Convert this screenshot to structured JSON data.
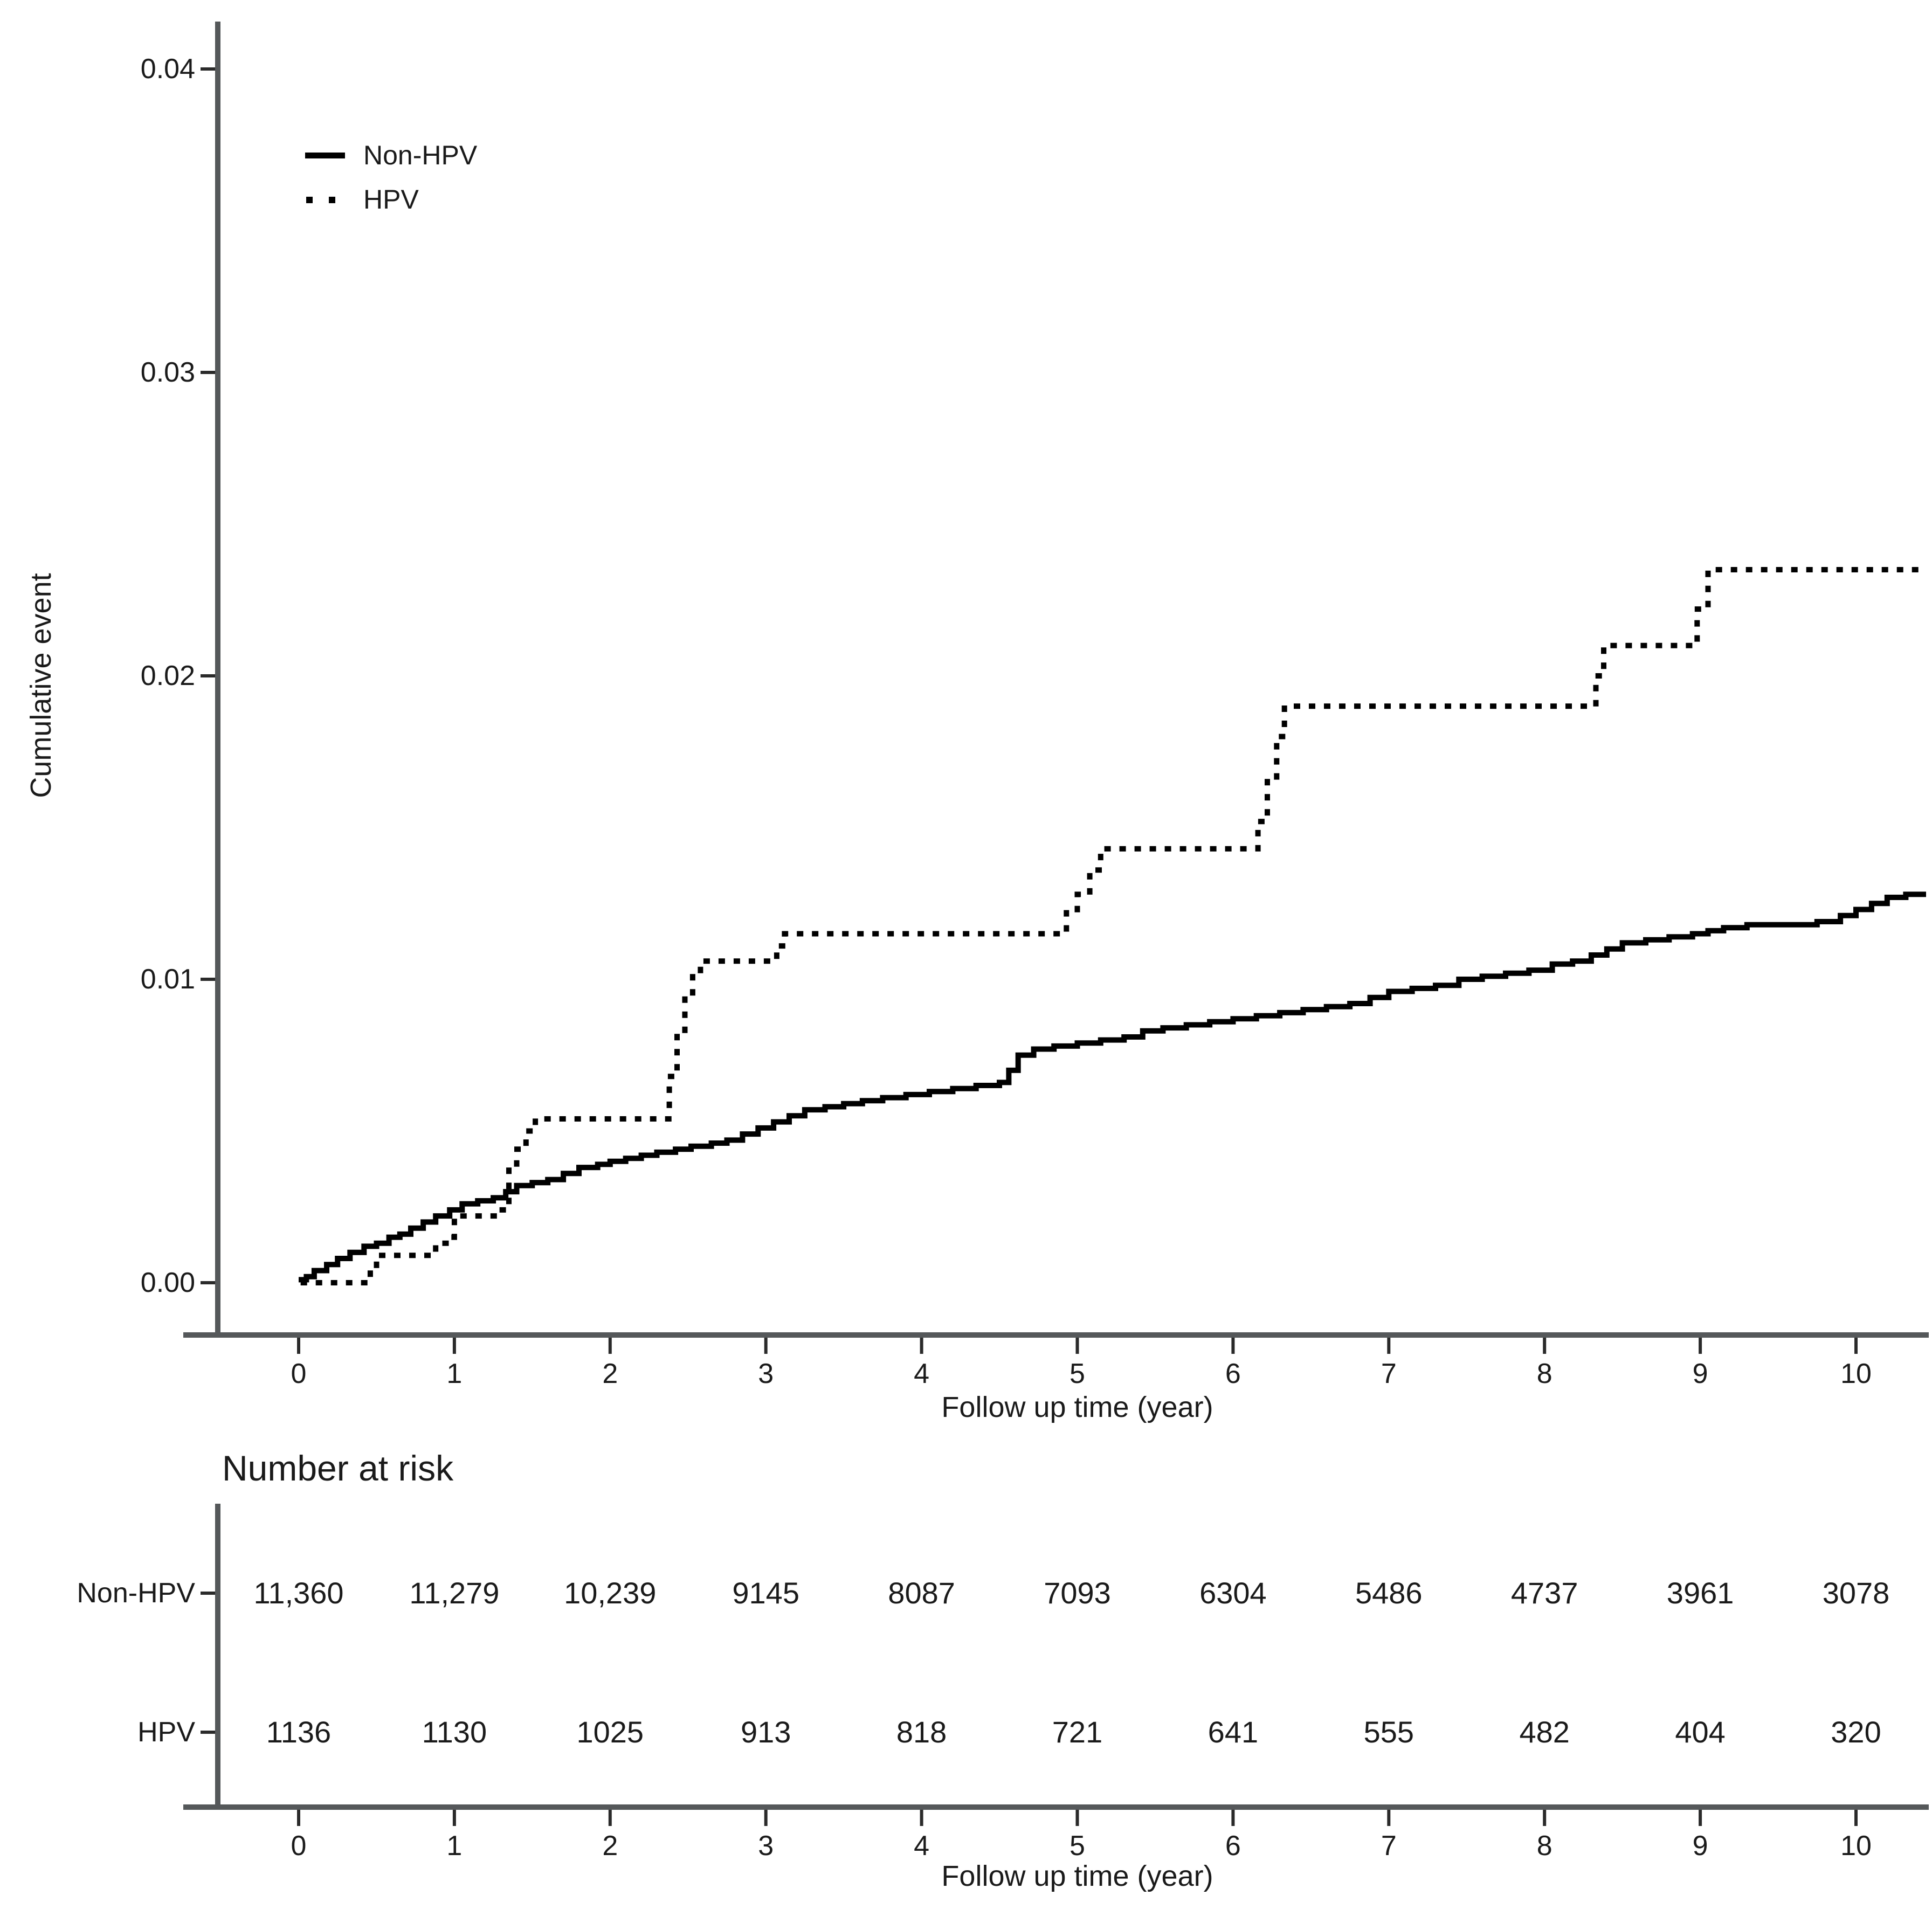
{
  "figure": {
    "background_color": "#ffffff",
    "text_color": "#1a1a1a",
    "axis_line_color": "#55585a",
    "curve_color": "#000000"
  },
  "chart_data": {
    "type": "line",
    "subtype": "kaplan-meier-cumulative-incidence-step",
    "title": "",
    "xlabel": "Follow up time (year)",
    "ylabel": "Cumulative event",
    "xlim": [
      -0.45,
      10.55
    ],
    "ylim": [
      -0.0018,
      0.0415
    ],
    "grid": false,
    "legend_position": "inside-top-left",
    "x_ticks": [
      0,
      1,
      2,
      3,
      4,
      5,
      6,
      7,
      8,
      9,
      10
    ],
    "x_tick_labels": [
      "0",
      "1",
      "2",
      "3",
      "4",
      "5",
      "6",
      "7",
      "8",
      "9",
      "10"
    ],
    "y_ticks": [
      0.0,
      0.01,
      0.02,
      0.03,
      0.04
    ],
    "y_tick_labels": [
      "0.00",
      "0.01",
      "0.02",
      "0.03",
      "0.04"
    ],
    "series": [
      {
        "name": "Non-HPV",
        "line_style": "solid",
        "color": "#000000",
        "step": true,
        "points": [
          [
            0,
            0.0001
          ],
          [
            0.05,
            0.0002
          ],
          [
            0.1,
            0.0004
          ],
          [
            0.18,
            0.0006
          ],
          [
            0.25,
            0.0008
          ],
          [
            0.33,
            0.001
          ],
          [
            0.42,
            0.0012
          ],
          [
            0.5,
            0.0013
          ],
          [
            0.58,
            0.0015
          ],
          [
            0.65,
            0.0016
          ],
          [
            0.72,
            0.0018
          ],
          [
            0.8,
            0.002
          ],
          [
            0.88,
            0.0022
          ],
          [
            0.97,
            0.0024
          ],
          [
            1.05,
            0.0026
          ],
          [
            1.15,
            0.0027
          ],
          [
            1.25,
            0.0028
          ],
          [
            1.33,
            0.003
          ],
          [
            1.4,
            0.0032
          ],
          [
            1.5,
            0.0033
          ],
          [
            1.6,
            0.0034
          ],
          [
            1.7,
            0.0036
          ],
          [
            1.8,
            0.0038
          ],
          [
            1.92,
            0.0039
          ],
          [
            2.0,
            0.004
          ],
          [
            2.1,
            0.0041
          ],
          [
            2.2,
            0.0042
          ],
          [
            2.3,
            0.0043
          ],
          [
            2.42,
            0.0044
          ],
          [
            2.52,
            0.0045
          ],
          [
            2.65,
            0.0046
          ],
          [
            2.75,
            0.0047
          ],
          [
            2.85,
            0.0049
          ],
          [
            2.95,
            0.0051
          ],
          [
            3.05,
            0.0053
          ],
          [
            3.15,
            0.0055
          ],
          [
            3.25,
            0.0057
          ],
          [
            3.38,
            0.0058
          ],
          [
            3.5,
            0.0059
          ],
          [
            3.62,
            0.006
          ],
          [
            3.75,
            0.0061
          ],
          [
            3.9,
            0.0062
          ],
          [
            4.05,
            0.0063
          ],
          [
            4.2,
            0.0064
          ],
          [
            4.35,
            0.0065
          ],
          [
            4.5,
            0.0066
          ],
          [
            4.56,
            0.007
          ],
          [
            4.62,
            0.0075
          ],
          [
            4.72,
            0.0077
          ],
          [
            4.85,
            0.0078
          ],
          [
            5.0,
            0.0079
          ],
          [
            5.15,
            0.008
          ],
          [
            5.3,
            0.0081
          ],
          [
            5.42,
            0.0083
          ],
          [
            5.55,
            0.0084
          ],
          [
            5.7,
            0.0085
          ],
          [
            5.85,
            0.0086
          ],
          [
            6.0,
            0.0087
          ],
          [
            6.15,
            0.0088
          ],
          [
            6.3,
            0.0089
          ],
          [
            6.45,
            0.009
          ],
          [
            6.6,
            0.0091
          ],
          [
            6.75,
            0.0092
          ],
          [
            6.88,
            0.0094
          ],
          [
            7.0,
            0.0096
          ],
          [
            7.15,
            0.0097
          ],
          [
            7.3,
            0.0098
          ],
          [
            7.45,
            0.01
          ],
          [
            7.6,
            0.0101
          ],
          [
            7.75,
            0.0102
          ],
          [
            7.9,
            0.0103
          ],
          [
            8.05,
            0.0105
          ],
          [
            8.18,
            0.0106
          ],
          [
            8.3,
            0.0108
          ],
          [
            8.4,
            0.011
          ],
          [
            8.5,
            0.0112
          ],
          [
            8.65,
            0.0113
          ],
          [
            8.8,
            0.0114
          ],
          [
            8.95,
            0.0115
          ],
          [
            9.05,
            0.0116
          ],
          [
            9.15,
            0.0117
          ],
          [
            9.3,
            0.0118
          ],
          [
            9.6,
            0.0118
          ],
          [
            9.75,
            0.0119
          ],
          [
            9.9,
            0.0121
          ],
          [
            10.0,
            0.0123
          ],
          [
            10.1,
            0.0125
          ],
          [
            10.2,
            0.0127
          ],
          [
            10.32,
            0.0128
          ],
          [
            10.45,
            0.0128
          ]
        ]
      },
      {
        "name": "HPV",
        "line_style": "dotted",
        "color": "#000000",
        "step": true,
        "points": [
          [
            0.03,
            0
          ],
          [
            0.42,
            0
          ],
          [
            0.46,
            0.0005
          ],
          [
            0.5,
            0.0009
          ],
          [
            0.85,
            0.0009
          ],
          [
            0.88,
            0.0013
          ],
          [
            0.95,
            0.0015
          ],
          [
            1.0,
            0.0022
          ],
          [
            1.3,
            0.0024
          ],
          [
            1.35,
            0.0038
          ],
          [
            1.4,
            0.0044
          ],
          [
            1.46,
            0.005
          ],
          [
            1.52,
            0.0054
          ],
          [
            2.33,
            0.0054
          ],
          [
            2.38,
            0.0068
          ],
          [
            2.43,
            0.0082
          ],
          [
            2.48,
            0.0094
          ],
          [
            2.53,
            0.0102
          ],
          [
            2.58,
            0.0106
          ],
          [
            3.02,
            0.0106
          ],
          [
            3.07,
            0.0111
          ],
          [
            3.12,
            0.0115
          ],
          [
            4.87,
            0.0115
          ],
          [
            4.93,
            0.0122
          ],
          [
            5.0,
            0.0128
          ],
          [
            5.08,
            0.0136
          ],
          [
            5.15,
            0.0143
          ],
          [
            6.1,
            0.0143
          ],
          [
            6.16,
            0.0152
          ],
          [
            6.22,
            0.0166
          ],
          [
            6.28,
            0.018
          ],
          [
            6.33,
            0.019
          ],
          [
            8.28,
            0.019
          ],
          [
            8.33,
            0.02
          ],
          [
            8.38,
            0.021
          ],
          [
            8.93,
            0.021
          ],
          [
            8.98,
            0.0222
          ],
          [
            9.05,
            0.0235
          ],
          [
            10.42,
            0.0235
          ]
        ]
      }
    ]
  },
  "legend": {
    "entries": [
      {
        "label": "Non-HPV",
        "swatch": "solid-line"
      },
      {
        "label": "HPV",
        "swatch": "dotted-line"
      }
    ]
  },
  "risk_table": {
    "title": "Number at risk",
    "x_axis": {
      "title": "Follow up time (year)",
      "tick_labels": [
        "0",
        "1",
        "2",
        "3",
        "4",
        "5",
        "6",
        "7",
        "8",
        "9",
        "10"
      ]
    },
    "rows": [
      {
        "label": "Non-HPV",
        "values": [
          "11,360",
          "11,279",
          "10,239",
          "9145",
          "8087",
          "7093",
          "6304",
          "5486",
          "4737",
          "3961",
          "3078"
        ]
      },
      {
        "label": "HPV",
        "values": [
          "1136",
          "1130",
          "1025",
          "913",
          "818",
          "721",
          "641",
          "555",
          "482",
          "404",
          "320"
        ]
      }
    ]
  }
}
